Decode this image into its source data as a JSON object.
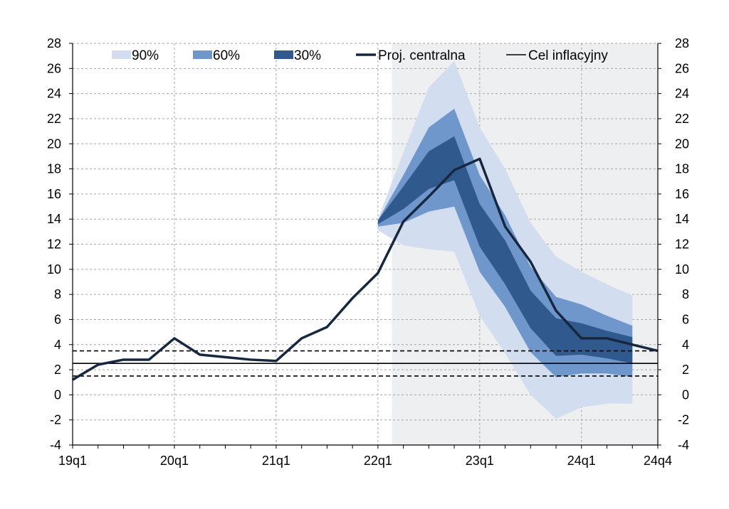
{
  "chart_data": {
    "type": "area",
    "title": "",
    "xlabel": "",
    "ylabel": "",
    "ylim": [
      -4,
      28
    ],
    "y_ticks": [
      -4,
      -2,
      0,
      2,
      4,
      6,
      8,
      10,
      12,
      14,
      16,
      18,
      20,
      22,
      24,
      26,
      28
    ],
    "grid": true,
    "legend_position": "top",
    "x_tick_labels": [
      "19q1",
      "20q1",
      "21q1",
      "22q1",
      "23q1",
      "24q1",
      "24q4"
    ],
    "x_tick_quarters": [
      "19q1",
      "20q1",
      "21q1",
      "22q1",
      "23q1",
      "24q1",
      "24q4"
    ],
    "quarters": [
      "19q1",
      "19q2",
      "19q3",
      "19q4",
      "20q1",
      "20q2",
      "20q3",
      "20q4",
      "21q1",
      "21q2",
      "21q3",
      "21q4",
      "22q1",
      "22q2",
      "22q3",
      "22q4",
      "23q1",
      "23q2",
      "23q3",
      "23q4",
      "24q1",
      "24q2",
      "24q3",
      "24q4"
    ],
    "projection_start": "22q2",
    "central_projection": {
      "name": "Proj. centralna",
      "color": "#16273f",
      "values": [
        1.2,
        2.4,
        2.8,
        2.8,
        4.5,
        3.2,
        3.0,
        2.8,
        2.7,
        4.5,
        5.4,
        7.7,
        9.7,
        13.8,
        15.8,
        17.9,
        18.8,
        13.4,
        10.6,
        6.7,
        4.5,
        4.5,
        4.0,
        3.5
      ]
    },
    "inflation_target": {
      "name": "Cel inflacyjny",
      "value": 2.5,
      "band_lower": 1.5,
      "band_upper": 3.5
    },
    "fan_bands": [
      {
        "name": "90%",
        "color": "#d2ddef",
        "lower": [
          13.1,
          11.9,
          11.6,
          11.4,
          6.3,
          3.3,
          0.0,
          -1.9,
          -1.0,
          -0.7,
          -0.7
        ],
        "upper": [
          14.0,
          19.3,
          24.5,
          26.6,
          21.3,
          18.0,
          13.7,
          11.0,
          9.8,
          8.8,
          7.9
        ]
      },
      {
        "name": "60%",
        "color": "#6f97cc",
        "lower": [
          13.4,
          13.7,
          14.6,
          15.0,
          9.8,
          7.0,
          3.4,
          1.4,
          1.7,
          1.7,
          1.4
        ],
        "upper": [
          13.9,
          17.5,
          21.3,
          22.8,
          17.5,
          14.3,
          10.2,
          7.8,
          7.2,
          6.3,
          5.5
        ]
      },
      {
        "name": "30%",
        "color": "#305a8e",
        "lower": [
          13.6,
          14.8,
          16.4,
          17.1,
          11.8,
          8.8,
          5.3,
          3.1,
          3.2,
          2.9,
          2.5
        ],
        "upper": [
          13.9,
          16.6,
          19.4,
          20.6,
          15.2,
          12.3,
          8.3,
          6.1,
          5.7,
          5.1,
          4.6
        ]
      }
    ]
  }
}
